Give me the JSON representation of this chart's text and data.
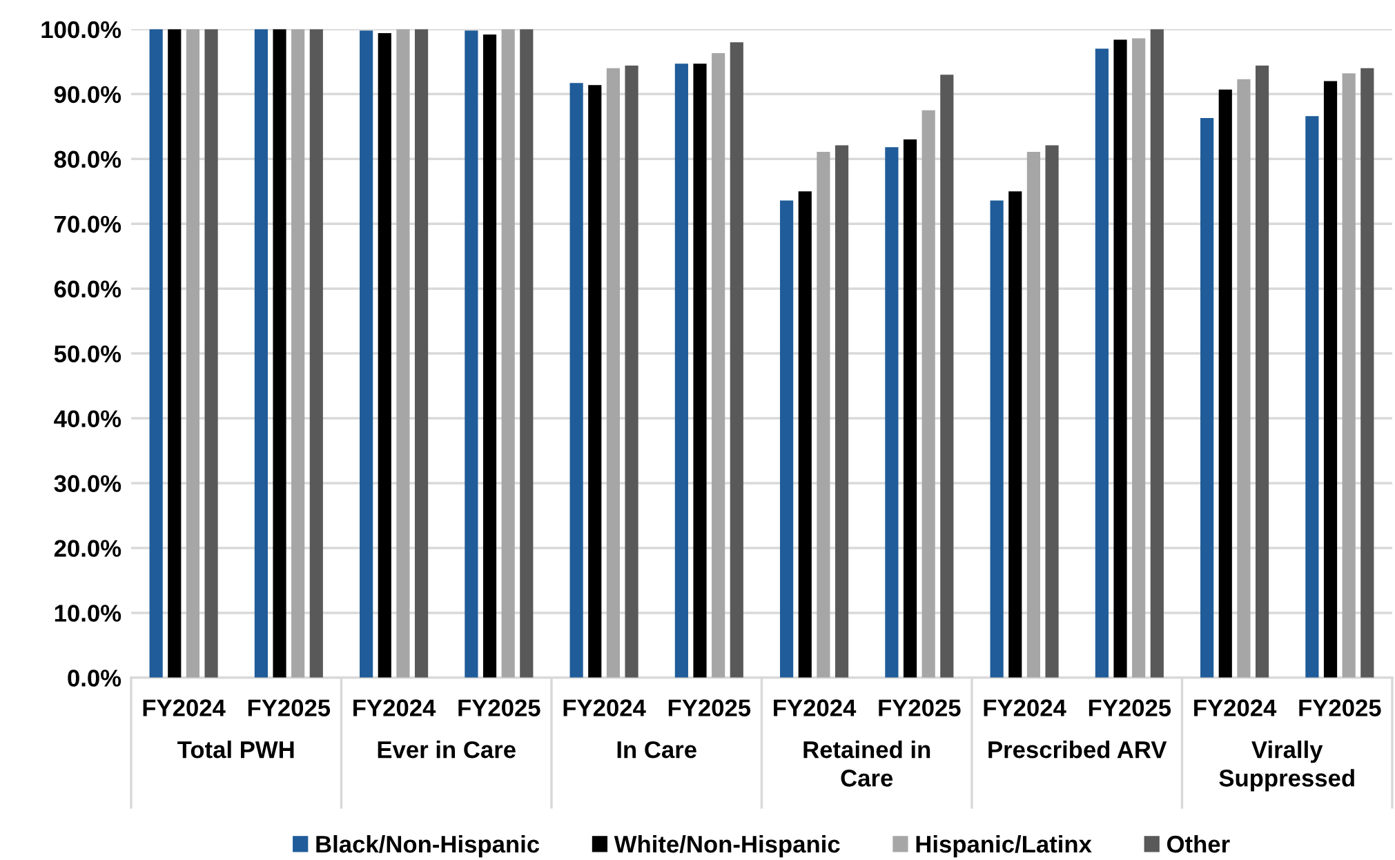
{
  "chart_data": {
    "type": "bar",
    "categories": [
      "FY2024",
      "FY2025",
      "FY2024",
      "FY2025",
      "FY2024",
      "FY2025",
      "FY2024",
      "FY2025",
      "FY2024",
      "FY2025",
      "FY2024",
      "FY2025"
    ],
    "annotations": [
      "Total PWH",
      "Ever in Care",
      "In Care",
      "Retained in\nCare",
      "Prescribed ARV",
      "Virally\nSuppressed"
    ],
    "series": [
      {
        "name": "Black/Non-Hispanic",
        "color": "#1f5c99",
        "values": [
          100,
          100,
          99.8,
          99.8,
          91.7,
          94.7,
          73.6,
          81.8,
          73.6,
          97.0,
          86.3,
          86.6
        ]
      },
      {
        "name": "White/Non-Hispanic",
        "color": "#000000",
        "values": [
          100,
          100,
          99.4,
          99.2,
          91.4,
          94.7,
          75.0,
          83.0,
          75.0,
          98.4,
          90.7,
          92.0
        ]
      },
      {
        "name": "Hispanic/Latinx",
        "color": "#a6a6a6",
        "values": [
          100,
          100,
          100,
          100,
          94.0,
          96.3,
          81.1,
          87.5,
          81.1,
          98.6,
          92.3,
          93.2
        ]
      },
      {
        "name": "Other",
        "color": "#595959",
        "values": [
          100,
          100,
          100,
          100,
          94.4,
          98.0,
          82.1,
          93.0,
          82.1,
          100,
          94.4,
          94.0
        ]
      }
    ],
    "ylim": [
      0,
      100
    ],
    "yticks": [
      {
        "value": 0,
        "label": "0.0%"
      },
      {
        "value": 10,
        "label": "10.0%"
      },
      {
        "value": 20,
        "label": "20.0%"
      },
      {
        "value": 30,
        "label": "30.0%"
      },
      {
        "value": 40,
        "label": "40.0%"
      },
      {
        "value": 50,
        "label": "50.0%"
      },
      {
        "value": 60,
        "label": "60.0%"
      },
      {
        "value": 70,
        "label": "70.0%"
      },
      {
        "value": 80,
        "label": "80.0%"
      },
      {
        "value": 90,
        "label": "90.0%"
      },
      {
        "value": 100,
        "label": "100.0%"
      }
    ],
    "grid": "y",
    "legend": "bottom"
  }
}
